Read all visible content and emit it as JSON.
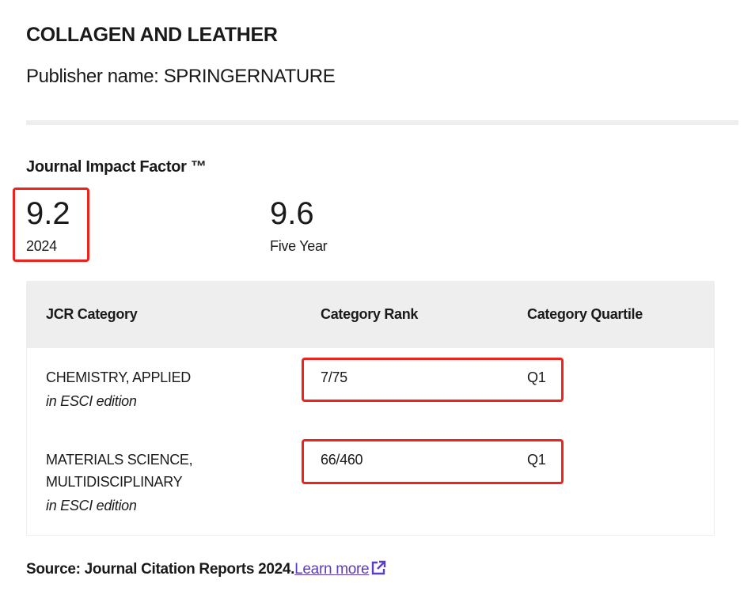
{
  "journal": {
    "title": "COLLAGEN AND LEATHER",
    "publisher": "Publisher name: SPRINGERNATURE"
  },
  "jif": {
    "heading": "Journal Impact Factor ™",
    "current_value": "9.2",
    "current_label": "2024",
    "five_year_value": "9.6",
    "five_year_label": "Five Year"
  },
  "table": {
    "headers": [
      "JCR Category",
      "Category Rank",
      "Category Quartile"
    ],
    "rows": [
      {
        "category_lines": [
          "CHEMISTRY, APPLIED"
        ],
        "edition": "in ESCI edition",
        "rank": "7/75",
        "quartile": "Q1"
      },
      {
        "category_lines": [
          "MATERIALS SCIENCE,",
          "MULTIDISCIPLINARY"
        ],
        "edition": "in ESCI edition",
        "rank": "66/460",
        "quartile": "Q1"
      }
    ]
  },
  "source": {
    "text": "Source: Journal Citation Reports  2024.",
    "link": "Learn more",
    "icon": "external-link-icon"
  },
  "colors": {
    "highlight": "#f0231c",
    "link": "#5b3cc4",
    "header_bg": "#eeeeee"
  }
}
